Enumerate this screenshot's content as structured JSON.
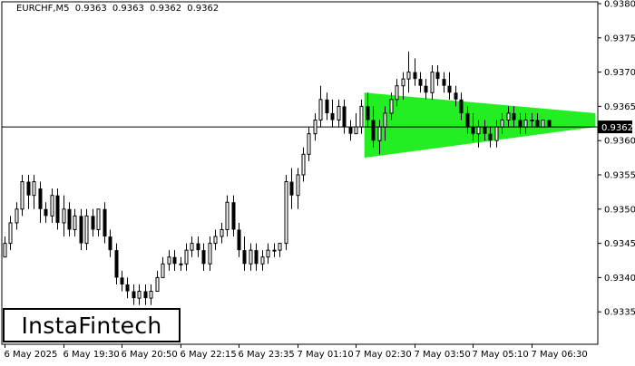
{
  "header": {
    "symbol": "EURCHF,M5",
    "open": "0.9363",
    "high": "0.9363",
    "low": "0.9362",
    "close": "0.9362"
  },
  "logo": {
    "text": "InstaFintech"
  },
  "colors": {
    "pattern_fill": "#22ee22",
    "candle": "#000000",
    "current_price_box": "#000000",
    "background": "#ffffff"
  },
  "chart_data": {
    "type": "candlestick",
    "pattern": {
      "name": "",
      "x_start": 61.5,
      "x_end": 101,
      "upper_start": 0.9367,
      "upper_end": 0.9364,
      "lower_start": 0.93575,
      "lower_end": 0.9362
    },
    "current_price": {
      "value": 0.9362,
      "label": "0.9362"
    },
    "ylim": [
      0.933,
      0.938
    ],
    "y_ticks": [
      "0.9380",
      "0.9375",
      "0.9370",
      "0.9365",
      "0.9360",
      "0.9355",
      "0.9350",
      "0.9345",
      "0.9340",
      "0.9335"
    ],
    "x_ticks": [
      {
        "index": 0,
        "label": "6 May 2025"
      },
      {
        "index": 10,
        "label": "6 May 19:30"
      },
      {
        "index": 20,
        "label": "6 May 20:50"
      },
      {
        "index": 30,
        "label": "6 May 22:15"
      },
      {
        "index": 40,
        "label": "6 May 23:35"
      },
      {
        "index": 50,
        "label": "7 May 01:10"
      },
      {
        "index": 60,
        "label": "7 May 02:30"
      },
      {
        "index": 70,
        "label": "7 May 03:50"
      },
      {
        "index": 80,
        "label": "7 May 05:10"
      },
      {
        "index": 90,
        "label": "7 May 06:30"
      }
    ],
    "candles": [
      [
        0.9343,
        0.9346,
        0.9343,
        0.9345
      ],
      [
        0.9345,
        0.9349,
        0.9344,
        0.9348
      ],
      [
        0.9348,
        0.9351,
        0.9347,
        0.935
      ],
      [
        0.935,
        0.9355,
        0.9349,
        0.9354
      ],
      [
        0.9354,
        0.9355,
        0.935,
        0.9352
      ],
      [
        0.9352,
        0.9355,
        0.935,
        0.9354
      ],
      [
        0.9353,
        0.9354,
        0.9348,
        0.935
      ],
      [
        0.935,
        0.9351,
        0.9348,
        0.9349
      ],
      [
        0.9349,
        0.9353,
        0.9348,
        0.9352
      ],
      [
        0.9352,
        0.9353,
        0.9347,
        0.9348
      ],
      [
        0.9348,
        0.9352,
        0.9346,
        0.935
      ],
      [
        0.935,
        0.9351,
        0.9346,
        0.9347
      ],
      [
        0.9347,
        0.935,
        0.9346,
        0.9349
      ],
      [
        0.9349,
        0.935,
        0.9344,
        0.9345
      ],
      [
        0.9345,
        0.935,
        0.9344,
        0.9349
      ],
      [
        0.9349,
        0.935,
        0.9346,
        0.9347
      ],
      [
        0.9347,
        0.935,
        0.9346,
        0.935
      ],
      [
        0.935,
        0.9351,
        0.9345,
        0.9346
      ],
      [
        0.9346,
        0.9347,
        0.9343,
        0.9344
      ],
      [
        0.9344,
        0.9345,
        0.9339,
        0.934
      ],
      [
        0.934,
        0.9341,
        0.9338,
        0.9339
      ],
      [
        0.9339,
        0.934,
        0.9337,
        0.9338
      ],
      [
        0.9338,
        0.9339,
        0.9336,
        0.9337
      ],
      [
        0.9337,
        0.9339,
        0.9336,
        0.9338
      ],
      [
        0.9338,
        0.9339,
        0.9336,
        0.9337
      ],
      [
        0.9337,
        0.9339,
        0.9336,
        0.9338
      ],
      [
        0.9338,
        0.9341,
        0.9338,
        0.934
      ],
      [
        0.934,
        0.9343,
        0.934,
        0.9342
      ],
      [
        0.9342,
        0.9344,
        0.9341,
        0.9343
      ],
      [
        0.9343,
        0.9344,
        0.9341,
        0.9342
      ],
      [
        0.9342,
        0.9343,
        0.9341,
        0.9342
      ],
      [
        0.9342,
        0.9345,
        0.9341,
        0.9344
      ],
      [
        0.9344,
        0.9346,
        0.9343,
        0.9345
      ],
      [
        0.9345,
        0.9346,
        0.9343,
        0.9344
      ],
      [
        0.9344,
        0.9345,
        0.9341,
        0.9342
      ],
      [
        0.9342,
        0.9346,
        0.9341,
        0.9345
      ],
      [
        0.9345,
        0.9347,
        0.9344,
        0.9346
      ],
      [
        0.9346,
        0.9348,
        0.9345,
        0.9347
      ],
      [
        0.9347,
        0.9352,
        0.9346,
        0.9351
      ],
      [
        0.9351,
        0.9352,
        0.9346,
        0.9347
      ],
      [
        0.9347,
        0.9348,
        0.9343,
        0.9344
      ],
      [
        0.9344,
        0.9346,
        0.9341,
        0.9342
      ],
      [
        0.9342,
        0.9345,
        0.9341,
        0.9344
      ],
      [
        0.9344,
        0.9345,
        0.9341,
        0.9342
      ],
      [
        0.9342,
        0.9344,
        0.9341,
        0.9343
      ],
      [
        0.9343,
        0.9345,
        0.9342,
        0.9344
      ],
      [
        0.9344,
        0.9345,
        0.9343,
        0.9344
      ],
      [
        0.9344,
        0.9345,
        0.9343,
        0.9345
      ],
      [
        0.9345,
        0.9355,
        0.9344,
        0.9354
      ],
      [
        0.9354,
        0.9356,
        0.935,
        0.9352
      ],
      [
        0.9352,
        0.9356,
        0.935,
        0.9355
      ],
      [
        0.9355,
        0.9359,
        0.9354,
        0.9358
      ],
      [
        0.9358,
        0.9362,
        0.9357,
        0.9361
      ],
      [
        0.9361,
        0.9364,
        0.936,
        0.9363
      ],
      [
        0.9363,
        0.9368,
        0.9362,
        0.9366
      ],
      [
        0.9366,
        0.9367,
        0.9363,
        0.9364
      ],
      [
        0.9364,
        0.9366,
        0.9362,
        0.9363
      ],
      [
        0.9363,
        0.9366,
        0.9362,
        0.9365
      ],
      [
        0.9365,
        0.9366,
        0.9361,
        0.9362
      ],
      [
        0.9362,
        0.9363,
        0.936,
        0.9361
      ],
      [
        0.9361,
        0.9364,
        0.9361,
        0.9362
      ],
      [
        0.9362,
        0.9366,
        0.9361,
        0.9365
      ],
      [
        0.9365,
        0.9367,
        0.9362,
        0.9363
      ],
      [
        0.9363,
        0.9365,
        0.9359,
        0.936
      ],
      [
        0.936,
        0.9363,
        0.9358,
        0.9362
      ],
      [
        0.9362,
        0.9365,
        0.936,
        0.9364
      ],
      [
        0.9364,
        0.9367,
        0.9363,
        0.9366
      ],
      [
        0.9366,
        0.9369,
        0.9365,
        0.9368
      ],
      [
        0.9368,
        0.937,
        0.9366,
        0.9369
      ],
      [
        0.9369,
        0.9373,
        0.9367,
        0.937
      ],
      [
        0.937,
        0.9372,
        0.9368,
        0.9369
      ],
      [
        0.9369,
        0.937,
        0.9367,
        0.9368
      ],
      [
        0.9368,
        0.9369,
        0.9366,
        0.9367
      ],
      [
        0.9367,
        0.9371,
        0.9366,
        0.937
      ],
      [
        0.937,
        0.9371,
        0.9368,
        0.9369
      ],
      [
        0.9369,
        0.937,
        0.9367,
        0.9368
      ],
      [
        0.9368,
        0.937,
        0.9366,
        0.9367
      ],
      [
        0.9367,
        0.9368,
        0.9365,
        0.9366
      ],
      [
        0.9366,
        0.9367,
        0.9363,
        0.9364
      ],
      [
        0.9364,
        0.9365,
        0.9361,
        0.9362
      ],
      [
        0.9362,
        0.9364,
        0.936,
        0.9361
      ],
      [
        0.9361,
        0.9363,
        0.9359,
        0.9362
      ],
      [
        0.9362,
        0.9363,
        0.936,
        0.9361
      ],
      [
        0.9361,
        0.9362,
        0.9359,
        0.936
      ],
      [
        0.936,
        0.9363,
        0.9359,
        0.9362
      ],
      [
        0.9362,
        0.9364,
        0.9361,
        0.9363
      ],
      [
        0.9363,
        0.9365,
        0.9362,
        0.9364
      ],
      [
        0.9364,
        0.9365,
        0.9362,
        0.9363
      ],
      [
        0.9363,
        0.9364,
        0.9361,
        0.9362
      ],
      [
        0.9362,
        0.9364,
        0.9361,
        0.9363
      ],
      [
        0.9363,
        0.9364,
        0.9362,
        0.9363
      ],
      [
        0.9363,
        0.9364,
        0.9362,
        0.9362
      ],
      [
        0.9362,
        0.9363,
        0.9362,
        0.9363
      ],
      [
        0.9363,
        0.9363,
        0.9362,
        0.9362
      ]
    ]
  }
}
